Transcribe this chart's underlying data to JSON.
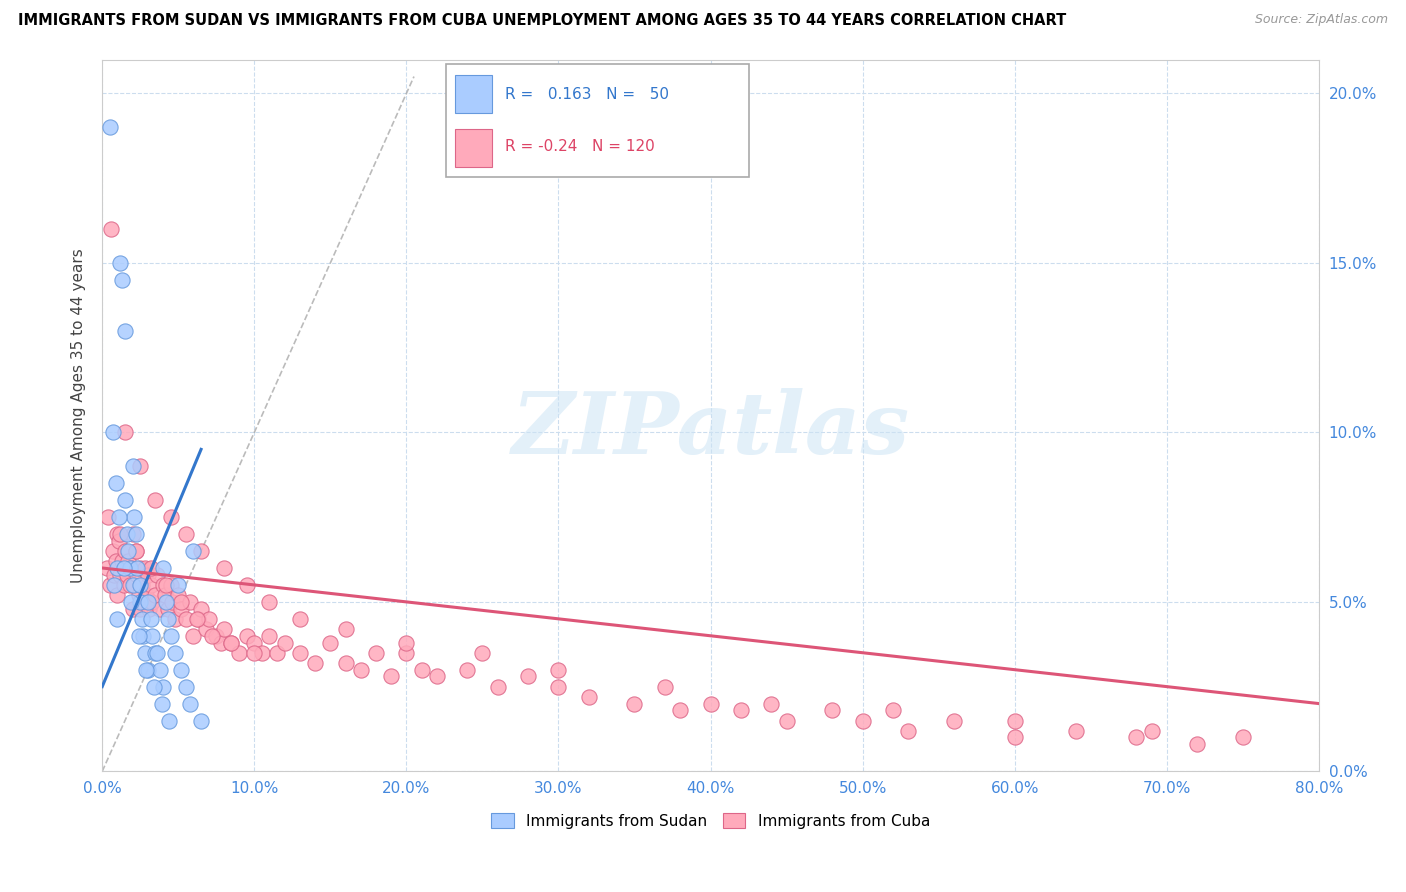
{
  "title": "IMMIGRANTS FROM SUDAN VS IMMIGRANTS FROM CUBA UNEMPLOYMENT AMONG AGES 35 TO 44 YEARS CORRELATION CHART",
  "source": "Source: ZipAtlas.com",
  "ylabel": "Unemployment Among Ages 35 to 44 years",
  "xlim": [
    0.0,
    0.8
  ],
  "ylim": [
    0.0,
    0.21
  ],
  "xticks": [
    0.0,
    0.1,
    0.2,
    0.3,
    0.4,
    0.5,
    0.6,
    0.7,
    0.8
  ],
  "yticks": [
    0.0,
    0.05,
    0.1,
    0.15,
    0.2
  ],
  "sudan_color": "#aaccff",
  "cuba_color": "#ffaabb",
  "sudan_edge_color": "#6699dd",
  "cuba_edge_color": "#dd6688",
  "sudan_R": 0.163,
  "sudan_N": 50,
  "cuba_R": -0.24,
  "cuba_N": 120,
  "watermark_text": "ZIPatlas",
  "sudan_x": [
    0.005,
    0.008,
    0.01,
    0.01,
    0.012,
    0.013,
    0.015,
    0.015,
    0.016,
    0.017,
    0.018,
    0.02,
    0.02,
    0.021,
    0.022,
    0.023,
    0.025,
    0.025,
    0.026,
    0.027,
    0.028,
    0.03,
    0.03,
    0.032,
    0.033,
    0.035,
    0.036,
    0.038,
    0.04,
    0.04,
    0.042,
    0.043,
    0.045,
    0.048,
    0.05,
    0.052,
    0.055,
    0.058,
    0.06,
    0.065,
    0.007,
    0.009,
    0.011,
    0.014,
    0.019,
    0.024,
    0.029,
    0.034,
    0.039,
    0.044
  ],
  "sudan_y": [
    0.19,
    0.055,
    0.06,
    0.045,
    0.15,
    0.145,
    0.13,
    0.08,
    0.07,
    0.065,
    0.06,
    0.09,
    0.055,
    0.075,
    0.07,
    0.06,
    0.055,
    0.05,
    0.045,
    0.04,
    0.035,
    0.05,
    0.03,
    0.045,
    0.04,
    0.035,
    0.035,
    0.03,
    0.06,
    0.025,
    0.05,
    0.045,
    0.04,
    0.035,
    0.055,
    0.03,
    0.025,
    0.02,
    0.065,
    0.015,
    0.1,
    0.085,
    0.075,
    0.06,
    0.05,
    0.04,
    0.03,
    0.025,
    0.02,
    0.015
  ],
  "cuba_x": [
    0.003,
    0.005,
    0.007,
    0.008,
    0.009,
    0.01,
    0.01,
    0.011,
    0.012,
    0.013,
    0.014,
    0.015,
    0.016,
    0.017,
    0.018,
    0.019,
    0.02,
    0.02,
    0.021,
    0.022,
    0.023,
    0.024,
    0.025,
    0.025,
    0.026,
    0.027,
    0.028,
    0.029,
    0.03,
    0.031,
    0.032,
    0.033,
    0.035,
    0.036,
    0.038,
    0.04,
    0.041,
    0.043,
    0.045,
    0.046,
    0.048,
    0.05,
    0.052,
    0.055,
    0.058,
    0.06,
    0.063,
    0.065,
    0.068,
    0.07,
    0.075,
    0.078,
    0.08,
    0.085,
    0.09,
    0.095,
    0.1,
    0.105,
    0.11,
    0.115,
    0.12,
    0.13,
    0.14,
    0.15,
    0.16,
    0.17,
    0.18,
    0.19,
    0.2,
    0.21,
    0.22,
    0.24,
    0.26,
    0.28,
    0.3,
    0.32,
    0.35,
    0.38,
    0.4,
    0.42,
    0.45,
    0.48,
    0.5,
    0.53,
    0.56,
    0.6,
    0.64,
    0.68,
    0.72,
    0.75,
    0.006,
    0.015,
    0.025,
    0.035,
    0.045,
    0.055,
    0.065,
    0.08,
    0.095,
    0.11,
    0.13,
    0.16,
    0.2,
    0.25,
    0.3,
    0.37,
    0.44,
    0.52,
    0.6,
    0.69,
    0.004,
    0.012,
    0.022,
    0.032,
    0.042,
    0.052,
    0.062,
    0.072,
    0.085,
    0.1
  ],
  "cuba_y": [
    0.06,
    0.055,
    0.065,
    0.058,
    0.062,
    0.07,
    0.052,
    0.068,
    0.058,
    0.062,
    0.055,
    0.065,
    0.058,
    0.062,
    0.055,
    0.06,
    0.07,
    0.048,
    0.055,
    0.065,
    0.058,
    0.052,
    0.06,
    0.048,
    0.055,
    0.05,
    0.06,
    0.052,
    0.058,
    0.048,
    0.055,
    0.05,
    0.052,
    0.058,
    0.048,
    0.055,
    0.052,
    0.048,
    0.055,
    0.05,
    0.045,
    0.052,
    0.048,
    0.045,
    0.05,
    0.04,
    0.045,
    0.048,
    0.042,
    0.045,
    0.04,
    0.038,
    0.042,
    0.038,
    0.035,
    0.04,
    0.038,
    0.035,
    0.04,
    0.035,
    0.038,
    0.035,
    0.032,
    0.038,
    0.032,
    0.03,
    0.035,
    0.028,
    0.035,
    0.03,
    0.028,
    0.03,
    0.025,
    0.028,
    0.025,
    0.022,
    0.02,
    0.018,
    0.02,
    0.018,
    0.015,
    0.018,
    0.015,
    0.012,
    0.015,
    0.01,
    0.012,
    0.01,
    0.008,
    0.01,
    0.16,
    0.1,
    0.09,
    0.08,
    0.075,
    0.07,
    0.065,
    0.06,
    0.055,
    0.05,
    0.045,
    0.042,
    0.038,
    0.035,
    0.03,
    0.025,
    0.02,
    0.018,
    0.015,
    0.012,
    0.075,
    0.07,
    0.065,
    0.06,
    0.055,
    0.05,
    0.045,
    0.04,
    0.038,
    0.035
  ],
  "sudan_line_x": [
    0.0,
    0.065
  ],
  "sudan_line_y": [
    0.025,
    0.095
  ],
  "cuba_line_x": [
    0.0,
    0.8
  ],
  "cuba_line_y": [
    0.06,
    0.02
  ],
  "diag_line_x": [
    0.0,
    0.205
  ],
  "diag_line_y": [
    0.0,
    0.205
  ]
}
